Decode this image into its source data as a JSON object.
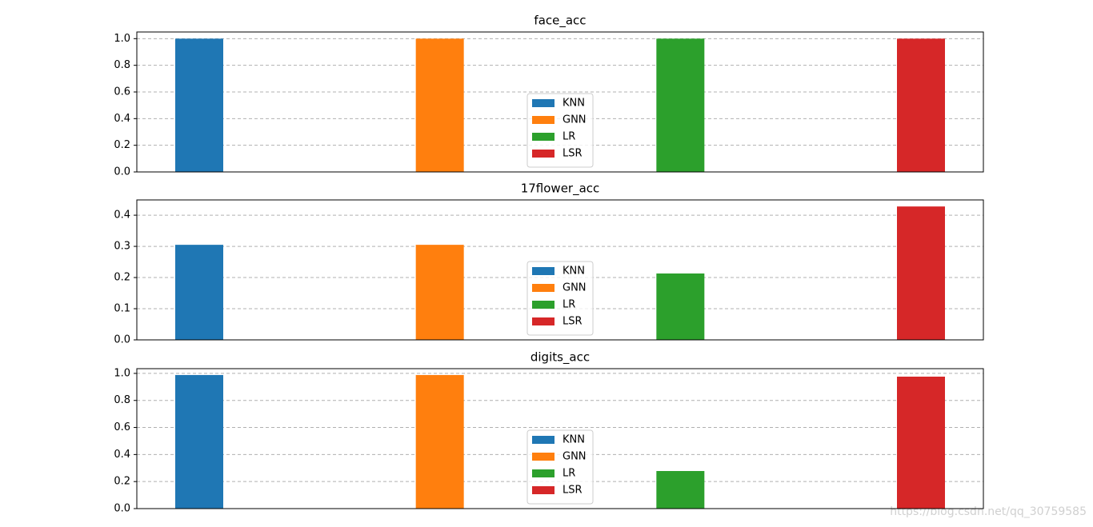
{
  "chart_data": [
    {
      "type": "bar",
      "title": "face_acc",
      "ylim": [
        0,
        1.05
      ],
      "yticks": [
        {
          "value": 0,
          "label": "0.0"
        },
        0.2,
        0.4,
        0.6,
        0.8,
        {
          "value": 1,
          "label": "1.0"
        }
      ],
      "grid": true,
      "legend": "lower center",
      "series": [
        {
          "name": "KNN",
          "color": "#1f77b4",
          "values": [
            1.0
          ]
        },
        {
          "name": "GNN",
          "color": "#ff7f0e",
          "values": [
            1.0
          ]
        },
        {
          "name": "LR",
          "color": "#2ca02c",
          "values": [
            1.0
          ]
        },
        {
          "name": "LSR",
          "color": "#d62728",
          "values": [
            1.0
          ]
        }
      ]
    },
    {
      "type": "bar",
      "title": "17flower_acc",
      "ylim": [
        0,
        0.449
      ],
      "yticks": [
        {
          "value": 0,
          "label": "0.0"
        },
        0.1,
        0.2,
        0.3,
        0.4
      ],
      "grid": true,
      "legend": "lower center",
      "series": [
        {
          "name": "KNN",
          "color": "#1f77b4",
          "values": [
            0.305
          ]
        },
        {
          "name": "GNN",
          "color": "#ff7f0e",
          "values": [
            0.305
          ]
        },
        {
          "name": "LR",
          "color": "#2ca02c",
          "values": [
            0.213
          ]
        },
        {
          "name": "LSR",
          "color": "#d62728",
          "values": [
            0.428
          ]
        }
      ]
    },
    {
      "type": "bar",
      "title": "digits_acc",
      "ylim": [
        0,
        1.035
      ],
      "yticks": [
        {
          "value": 0,
          "label": "0.0"
        },
        0.2,
        0.4,
        0.6,
        0.8,
        {
          "value": 1,
          "label": "1.0"
        }
      ],
      "grid": true,
      "legend": "lower center",
      "series": [
        {
          "name": "KNN",
          "color": "#1f77b4",
          "values": [
            0.988
          ]
        },
        {
          "name": "GNN",
          "color": "#ff7f0e",
          "values": [
            0.988
          ]
        },
        {
          "name": "LR",
          "color": "#2ca02c",
          "values": [
            0.278
          ]
        },
        {
          "name": "LSR",
          "color": "#d62728",
          "values": [
            0.976
          ]
        }
      ]
    }
  ],
  "watermark": "https://blog.csdn.net/qq_30759585"
}
